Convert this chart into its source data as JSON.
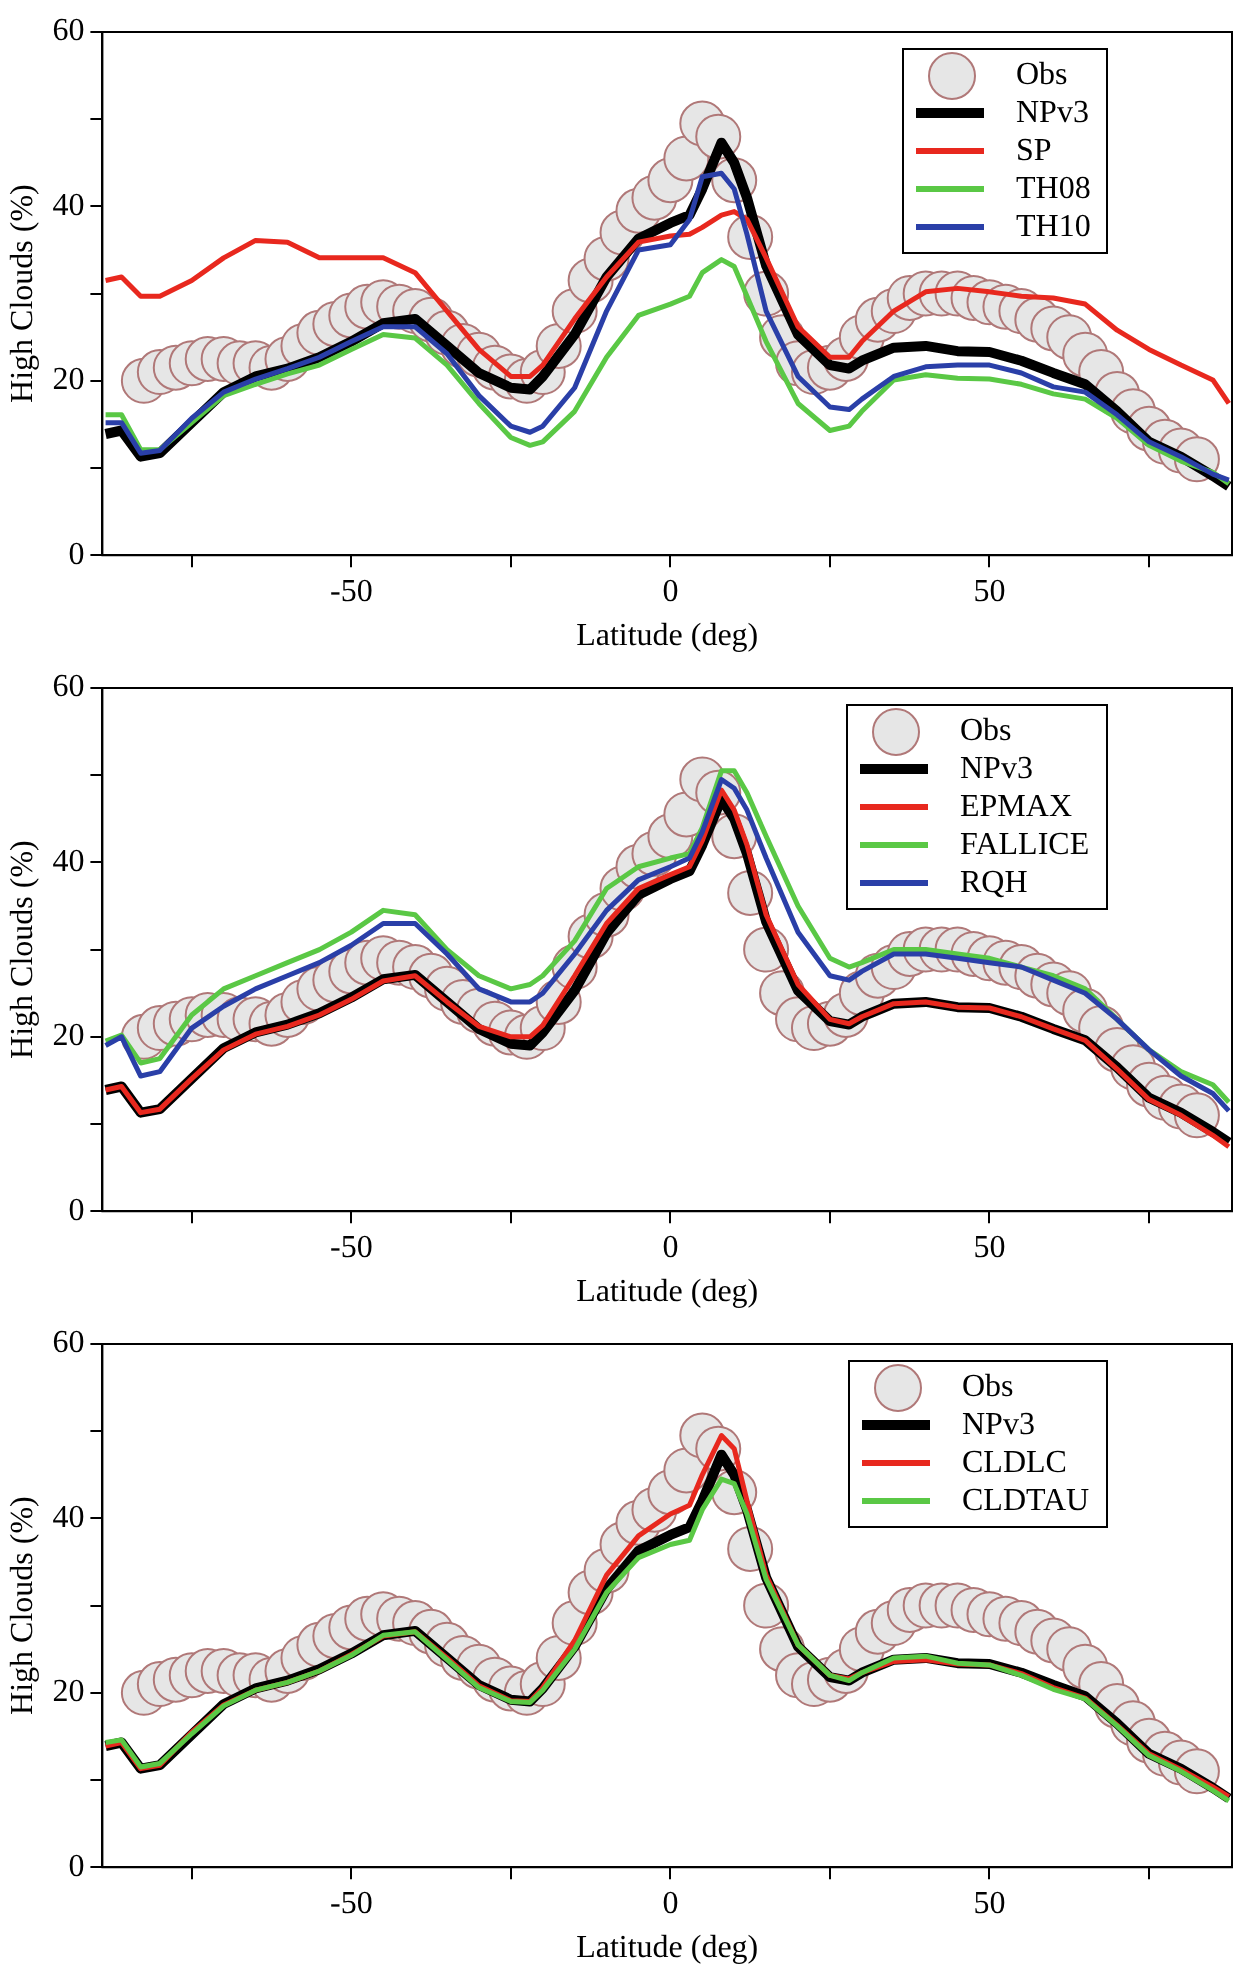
{
  "chart_data": [
    {
      "type": "line",
      "xlabel": "Latitude (deg)",
      "ylabel": "High Clouds (%)",
      "legend": "top right",
      "xlim": [
        -89,
        88
      ],
      "xticks": [
        {
          "value": -75,
          "label": null
        },
        -50,
        {
          "value": -25,
          "label": null
        },
        0,
        {
          "value": 25,
          "label": null
        },
        50,
        {
          "value": 75,
          "label": null
        }
      ],
      "ylim": [
        0,
        60
      ],
      "yticks": [
        0,
        {
          "value": 10,
          "label": null
        },
        20,
        {
          "value": 30,
          "label": null
        },
        40,
        {
          "value": 50,
          "label": null
        },
        60
      ],
      "x": [
        -88.5,
        -86,
        -83,
        -80,
        -75,
        -70,
        -65,
        -60,
        -55,
        -50,
        -45,
        -40,
        -35,
        -30,
        -25,
        -22,
        -20,
        -15,
        -10,
        -5,
        0,
        3,
        5,
        8,
        10,
        12,
        15,
        20,
        25,
        28,
        30,
        35,
        40,
        45,
        50,
        55,
        60,
        65,
        70,
        75,
        80,
        85,
        87.5
      ],
      "series": [
        {
          "name": "Obs",
          "type": "scatter",
          "marker": "circle",
          "color": "#e6e6e6",
          "x": [
            -82.5,
            -80,
            -77.5,
            -75,
            -72.5,
            -70,
            -67.5,
            -65,
            -62.5,
            -60,
            -57.5,
            -55,
            -52.5,
            -50,
            -47.5,
            -45,
            -42.5,
            -40,
            -37.5,
            -35,
            -32.5,
            -30,
            -27.5,
            -25,
            -22.5,
            -20,
            -17.5,
            -15,
            -12.5,
            -10,
            -7.5,
            -5,
            -2.5,
            0,
            2.5,
            5,
            7.5,
            10,
            12.5,
            15,
            17.5,
            20,
            22.5,
            25,
            27.5,
            30,
            32.5,
            35,
            37.5,
            40,
            42.5,
            45,
            47.5,
            50,
            52.5,
            55,
            57.5,
            60,
            62.5,
            65,
            67.5,
            70,
            72.5,
            75,
            77.5,
            80,
            82.5
          ],
          "values": [
            20,
            21,
            21.5,
            22,
            22.5,
            22.5,
            22,
            22,
            21.5,
            22.5,
            24,
            25.5,
            26.5,
            27.5,
            28.5,
            29,
            28.5,
            28,
            27,
            25.5,
            24,
            23,
            21.5,
            20.5,
            20,
            21,
            24,
            28,
            31.5,
            34,
            37,
            39.5,
            41,
            43,
            45.5,
            49.5,
            48,
            43,
            36.5,
            30,
            25,
            22,
            21,
            21.5,
            22.5,
            25,
            27,
            28,
            29.5,
            30,
            30,
            30,
            29.5,
            29,
            28.5,
            28,
            27,
            26,
            25,
            23,
            21,
            18.5,
            16.5,
            14.5,
            13,
            12,
            11
          ]
        },
        {
          "name": "NPv3",
          "color": "#000000",
          "values": [
            13.9,
            14.3,
            11.3,
            11.7,
            15.2,
            18.7,
            20.5,
            21.4,
            22.7,
            24.5,
            26.6,
            27.1,
            24,
            20.9,
            19.2,
            19,
            20.5,
            25.3,
            31.9,
            36.3,
            38.1,
            39,
            42,
            47.3,
            45,
            41,
            33.2,
            25.3,
            21.8,
            21.4,
            22.3,
            23.8,
            24,
            23.4,
            23.3,
            22.3,
            20.9,
            19.6,
            16.5,
            13,
            11.3,
            9.1,
            7.9
          ]
        },
        {
          "name": "SP",
          "color": "#e8281e",
          "values": [
            31.5,
            31.9,
            29.7,
            29.7,
            31.5,
            34.1,
            36.1,
            35.9,
            34.1,
            34.1,
            34.1,
            32.4,
            28,
            23.6,
            20.5,
            20.5,
            21.8,
            27.1,
            31.9,
            35.9,
            36.6,
            36.8,
            37.6,
            39,
            39.4,
            38.5,
            34.1,
            26.2,
            22.7,
            22.7,
            24.5,
            28,
            30.2,
            30.6,
            30.2,
            29.7,
            29.5,
            28.8,
            25.8,
            23.6,
            21.8,
            20.1,
            17.4
          ]
        },
        {
          "name": "TH08",
          "color": "#5ac845",
          "values": [
            16.1,
            16.1,
            12.1,
            12.1,
            15.2,
            18.3,
            19.6,
            20.8,
            21.8,
            23.6,
            25.3,
            24.9,
            21.8,
            17.4,
            13.5,
            12.6,
            13,
            16.5,
            22.7,
            27.5,
            28.8,
            29.7,
            32.4,
            33.9,
            33.1,
            29.7,
            24.5,
            17.4,
            14.3,
            14.8,
            16.5,
            20.1,
            20.7,
            20.3,
            20.2,
            19.6,
            18.5,
            17.9,
            15.7,
            12.6,
            10.8,
            9.5,
            8.2
          ]
        },
        {
          "name": "TH10",
          "color": "#2a3fa8",
          "values": [
            15.2,
            15.2,
            11.7,
            12,
            15.7,
            18.7,
            20.2,
            21.4,
            22.7,
            24.5,
            26.2,
            26.2,
            23.1,
            18.3,
            14.8,
            14.1,
            14.8,
            19.2,
            28,
            35,
            35.6,
            38.5,
            43.4,
            43.8,
            42,
            36.8,
            28,
            20.5,
            17,
            16.7,
            17.9,
            20.5,
            21.6,
            21.8,
            21.8,
            20.9,
            19.3,
            18.7,
            16.1,
            13,
            11.3,
            9.3,
            8.6
          ]
        }
      ]
    },
    {
      "type": "line",
      "xlabel": "Latitude (deg)",
      "ylabel": "High Clouds (%)",
      "legend": "top right",
      "xlim": [
        -89,
        88
      ],
      "xticks": [
        {
          "value": -75,
          "label": null
        },
        -50,
        {
          "value": -25,
          "label": null
        },
        0,
        {
          "value": 25,
          "label": null
        },
        50,
        {
          "value": 75,
          "label": null
        }
      ],
      "ylim": [
        0,
        60
      ],
      "yticks": [
        0,
        {
          "value": 10,
          "label": null
        },
        20,
        {
          "value": 30,
          "label": null
        },
        40,
        {
          "value": 50,
          "label": null
        },
        60
      ],
      "x": [
        -88.5,
        -86,
        -83,
        -80,
        -75,
        -70,
        -65,
        -60,
        -55,
        -50,
        -45,
        -40,
        -35,
        -30,
        -25,
        -22,
        -20,
        -15,
        -10,
        -5,
        0,
        3,
        5,
        8,
        10,
        12,
        15,
        20,
        25,
        28,
        30,
        35,
        40,
        45,
        50,
        55,
        60,
        65,
        70,
        75,
        80,
        85,
        87.5
      ],
      "series": [
        {
          "name": "Obs",
          "type": "scatter",
          "marker": "circle",
          "color": "#e6e6e6",
          "x": [
            -82.5,
            -80,
            -77.5,
            -75,
            -72.5,
            -70,
            -67.5,
            -65,
            -62.5,
            -60,
            -57.5,
            -55,
            -52.5,
            -50,
            -47.5,
            -45,
            -42.5,
            -40,
            -37.5,
            -35,
            -32.5,
            -30,
            -27.5,
            -25,
            -22.5,
            -20,
            -17.5,
            -15,
            -12.5,
            -10,
            -7.5,
            -5,
            -2.5,
            0,
            2.5,
            5,
            7.5,
            10,
            12.5,
            15,
            17.5,
            20,
            22.5,
            25,
            27.5,
            30,
            32.5,
            35,
            37.5,
            40,
            42.5,
            45,
            47.5,
            50,
            52.5,
            55,
            57.5,
            60,
            62.5,
            65,
            67.5,
            70,
            72.5,
            75,
            77.5,
            80,
            82.5
          ],
          "values": [
            20,
            21,
            21.5,
            22,
            22.5,
            22.5,
            22,
            22,
            21.5,
            22.5,
            24,
            25.5,
            26.5,
            27.5,
            28.5,
            29,
            28.5,
            28,
            27,
            25.5,
            24,
            23,
            21.5,
            20.5,
            20,
            21,
            24,
            28,
            31.5,
            34,
            37,
            39.5,
            41,
            43,
            45.5,
            49.5,
            48,
            43,
            36.5,
            30,
            25,
            22,
            21,
            21.5,
            22.5,
            25,
            27,
            28,
            29.5,
            30,
            30,
            30,
            29.5,
            29,
            28.5,
            28,
            27,
            26,
            25,
            23,
            21,
            18.5,
            16.5,
            14.5,
            13,
            12,
            11
          ]
        },
        {
          "name": "NPv3",
          "color": "#000000",
          "values": [
            13.9,
            14.3,
            11.3,
            11.7,
            15.2,
            18.7,
            20.5,
            21.4,
            22.7,
            24.5,
            26.6,
            27.1,
            24,
            20.9,
            19.2,
            19,
            20.5,
            25.3,
            31.9,
            36.3,
            38.1,
            39,
            42,
            47.3,
            45,
            41,
            33.2,
            25.3,
            21.8,
            21.4,
            22.3,
            23.8,
            24,
            23.4,
            23.3,
            22.3,
            20.9,
            19.6,
            16.5,
            13,
            11.3,
            9.1,
            7.9
          ]
        },
        {
          "name": "EPMAX",
          "color": "#e8281e",
          "values": [
            13.9,
            14.3,
            11.3,
            11.7,
            15.2,
            18.5,
            20.3,
            21.2,
            22.5,
            24.3,
            26.4,
            27,
            24,
            21.2,
            20,
            20,
            21.3,
            27,
            33,
            37,
            38.6,
            39.5,
            42.5,
            48.3,
            46,
            42,
            34,
            26,
            22,
            21.5,
            22.3,
            23.8,
            24,
            23.4,
            23.3,
            22.3,
            20.9,
            19.6,
            16.3,
            12.8,
            11,
            8.7,
            7.4
          ]
        },
        {
          "name": "FALLICE",
          "color": "#5ac845",
          "values": [
            19.5,
            20.2,
            17,
            17.5,
            22.5,
            25.5,
            27,
            28.5,
            30,
            32,
            34.5,
            34,
            30,
            27,
            25.5,
            26,
            27,
            31,
            37,
            39.5,
            40.5,
            41,
            44,
            50.5,
            50.5,
            48,
            43,
            35,
            29,
            28,
            28.5,
            30,
            30,
            29.5,
            29,
            28,
            27,
            25.5,
            22,
            18.5,
            16,
            14.5,
            12.5
          ]
        },
        {
          "name": "RQH",
          "color": "#2a3fa8",
          "values": [
            19,
            20,
            15.5,
            16,
            21,
            23.5,
            25.5,
            27,
            28.5,
            30.5,
            33,
            33,
            29.5,
            25.5,
            24,
            24,
            25,
            29.5,
            34.5,
            38,
            39.5,
            40.5,
            43.5,
            49.5,
            48.5,
            46,
            40.5,
            32,
            27,
            26.5,
            27.5,
            29.5,
            29.5,
            29,
            28.5,
            28,
            26.5,
            25,
            22,
            18.5,
            15.5,
            13.5,
            11.5
          ]
        }
      ]
    },
    {
      "type": "line",
      "xlabel": "Latitude (deg)",
      "ylabel": "High Clouds (%)",
      "legend": "top right",
      "xlim": [
        -89,
        88
      ],
      "xticks": [
        {
          "value": -75,
          "label": null
        },
        -50,
        {
          "value": -25,
          "label": null
        },
        0,
        {
          "value": 25,
          "label": null
        },
        50,
        {
          "value": 75,
          "label": null
        }
      ],
      "ylim": [
        0,
        60
      ],
      "yticks": [
        0,
        {
          "value": 10,
          "label": null
        },
        20,
        {
          "value": 30,
          "label": null
        },
        40,
        {
          "value": 50,
          "label": null
        },
        60
      ],
      "x": [
        -88.5,
        -86,
        -83,
        -80,
        -75,
        -70,
        -65,
        -60,
        -55,
        -50,
        -45,
        -40,
        -35,
        -30,
        -25,
        -22,
        -20,
        -15,
        -10,
        -5,
        0,
        3,
        5,
        8,
        10,
        12,
        15,
        20,
        25,
        28,
        30,
        35,
        40,
        45,
        50,
        55,
        60,
        65,
        70,
        75,
        80,
        85,
        87.5
      ],
      "series": [
        {
          "name": "Obs",
          "type": "scatter",
          "marker": "circle",
          "color": "#e6e6e6",
          "x": [
            -82.5,
            -80,
            -77.5,
            -75,
            -72.5,
            -70,
            -67.5,
            -65,
            -62.5,
            -60,
            -57.5,
            -55,
            -52.5,
            -50,
            -47.5,
            -45,
            -42.5,
            -40,
            -37.5,
            -35,
            -32.5,
            -30,
            -27.5,
            -25,
            -22.5,
            -20,
            -17.5,
            -15,
            -12.5,
            -10,
            -7.5,
            -5,
            -2.5,
            0,
            2.5,
            5,
            7.5,
            10,
            12.5,
            15,
            17.5,
            20,
            22.5,
            25,
            27.5,
            30,
            32.5,
            35,
            37.5,
            40,
            42.5,
            45,
            47.5,
            50,
            52.5,
            55,
            57.5,
            60,
            62.5,
            65,
            67.5,
            70,
            72.5,
            75,
            77.5,
            80,
            82.5
          ],
          "values": [
            20,
            21,
            21.5,
            22,
            22.5,
            22.5,
            22,
            22,
            21.5,
            22.5,
            24,
            25.5,
            26.5,
            27.5,
            28.5,
            29,
            28.5,
            28,
            27,
            25.5,
            24,
            23,
            21.5,
            20.5,
            20,
            21,
            24,
            28,
            31.5,
            34,
            37,
            39.5,
            41,
            43,
            45.5,
            49.5,
            48,
            43,
            36.5,
            30,
            25,
            22,
            21,
            21.5,
            22.5,
            25,
            27,
            28,
            29.5,
            30,
            30,
            30,
            29.5,
            29,
            28.5,
            28,
            27,
            26,
            25,
            23,
            21,
            18.5,
            16.5,
            14.5,
            13,
            12,
            11
          ]
        },
        {
          "name": "NPv3",
          "color": "#000000",
          "values": [
            13.9,
            14.3,
            11.3,
            11.7,
            15.2,
            18.7,
            20.5,
            21.4,
            22.7,
            24.5,
            26.6,
            27.1,
            24,
            20.9,
            19.2,
            19,
            20.5,
            25.3,
            31.9,
            36.3,
            38.1,
            39,
            42,
            47.3,
            45,
            41,
            33.2,
            25.3,
            21.8,
            21.4,
            22.3,
            23.8,
            24,
            23.4,
            23.3,
            22.3,
            20.9,
            19.6,
            16.5,
            13,
            11.3,
            9.1,
            7.9
          ]
        },
        {
          "name": "CLDLC",
          "color": "#e8281e",
          "values": [
            13.9,
            14.3,
            11.3,
            11.7,
            15.5,
            18.6,
            20.3,
            21.2,
            22.5,
            24.4,
            26.5,
            27,
            24,
            20.8,
            19.1,
            19,
            20.6,
            26,
            33.5,
            38,
            40.5,
            41.5,
            45,
            49.5,
            48,
            42,
            33.5,
            25.5,
            22,
            21.6,
            22.3,
            23.6,
            23.8,
            23.3,
            23.2,
            22.2,
            20.6,
            19.4,
            16.3,
            13,
            11.2,
            9.2,
            8.1
          ]
        },
        {
          "name": "CLDTAU",
          "color": "#5ac845",
          "values": [
            14.3,
            14.6,
            11.5,
            11.9,
            15.3,
            18.5,
            20.3,
            21.2,
            22.5,
            24.3,
            26.6,
            27,
            23.8,
            20.6,
            19,
            18.9,
            20.3,
            25,
            31.5,
            35.5,
            37,
            37.5,
            41,
            44.5,
            44,
            40.5,
            33,
            25.5,
            22,
            21.4,
            22.3,
            24,
            24.2,
            23.4,
            23.2,
            22,
            20.4,
            19.3,
            16.2,
            12.8,
            11,
            8.8,
            7.6
          ]
        }
      ]
    }
  ]
}
